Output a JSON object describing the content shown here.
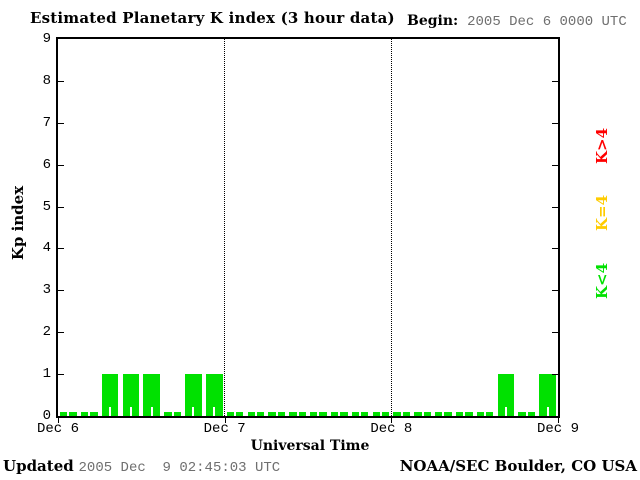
{
  "header": {
    "title": "Estimated Planetary K index (3 hour data)",
    "begin_label": "Begin:",
    "begin_value": "2005 Dec 6 0000 UTC"
  },
  "chart_data": {
    "type": "bar",
    "title": "Estimated Planetary K index (3 hour data)",
    "xlabel": "Universal Time",
    "ylabel": "Kp index",
    "ylim": [
      0,
      9
    ],
    "y_ticks": [
      0,
      1,
      2,
      3,
      4,
      5,
      6,
      7,
      8,
      9
    ],
    "x_tick_labels": [
      "Dec 6",
      "Dec 7",
      "Dec 8",
      "Dec 9"
    ],
    "interval_hours": 3,
    "bars_per_day": 8,
    "days": [
      {
        "date": "Dec 6",
        "values": [
          0,
          0,
          1,
          1,
          1,
          0,
          1,
          1
        ]
      },
      {
        "date": "Dec 7",
        "values": [
          0,
          0,
          0,
          0,
          0,
          0,
          0,
          0
        ]
      },
      {
        "date": "Dec 8",
        "values": [
          0,
          0,
          0,
          0,
          0,
          1,
          0,
          1
        ]
      }
    ],
    "legend": [
      {
        "label": "K>4",
        "color": "#ff0000"
      },
      {
        "label": "K=4",
        "color": "#ffcc00"
      },
      {
        "label": "K<4",
        "color": "#00e100"
      }
    ],
    "grid": "dotted vertical lines at day boundaries",
    "legend_position": "right, rotated 90deg"
  },
  "colors": {
    "bar_low": "#00e100",
    "bar_mid": "#ffcc00",
    "bar_high": "#ff0000",
    "axis": "#000000",
    "muted_text": "#6f6f6f"
  },
  "footer": {
    "updated_label": "Updated",
    "updated_value": "2005 Dec  9 02:45:03 UTC",
    "credit": "NOAA/SEC Boulder, CO USA"
  }
}
